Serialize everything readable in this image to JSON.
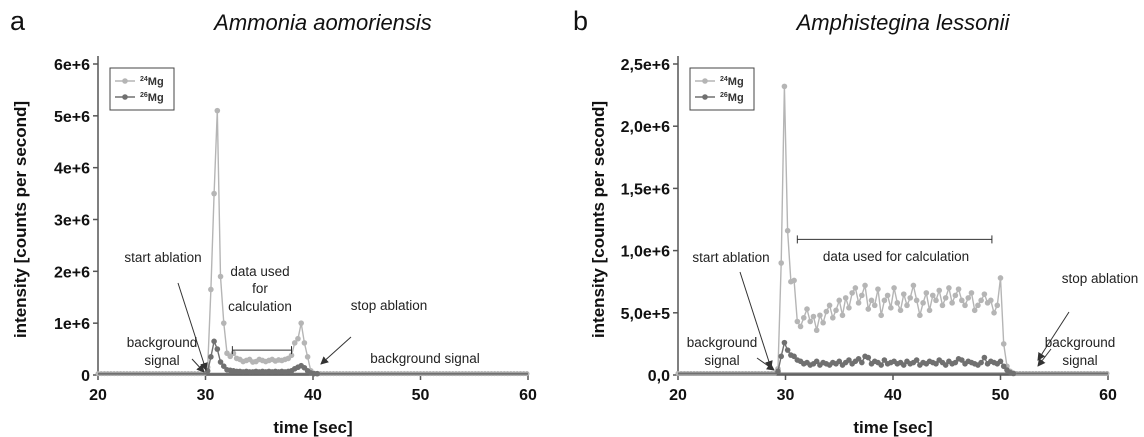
{
  "colors": {
    "mg24": "#b5b5b5",
    "mg26": "#707070"
  },
  "chart_data": [
    {
      "type": "line",
      "panel_letter": "a",
      "title": "Ammonia aomoriensis",
      "xlabel": "time [sec]",
      "ylabel": "intensity [counts per second]",
      "xlim": [
        20,
        60
      ],
      "ylim": [
        0,
        6000000
      ],
      "x_ticks": [
        20,
        30,
        40,
        50,
        60
      ],
      "x_tick_labels": [
        "20",
        "30",
        "40",
        "50",
        "60"
      ],
      "y_ticks": [
        0,
        1000000,
        2000000,
        3000000,
        4000000,
        5000000,
        6000000
      ],
      "y_tick_labels": [
        "0",
        "1e+6",
        "2e+6",
        "3e+6",
        "4e+6",
        "5e+6",
        "6e+6"
      ],
      "legend": {
        "placement": "top-left",
        "entries": [
          {
            "sup": "24",
            "label": "Mg"
          },
          {
            "sup": "26",
            "label": "Mg"
          }
        ]
      },
      "baseline": 25000,
      "series": [
        {
          "name": "24Mg",
          "color": "#b5b5b5",
          "x": [
            30.2,
            30.5,
            30.8,
            31.1,
            31.4,
            31.7,
            32.0,
            32.3,
            32.6,
            32.9,
            33.2,
            33.5,
            33.8,
            34.1,
            34.4,
            34.7,
            35.0,
            35.3,
            35.6,
            35.9,
            36.2,
            36.5,
            36.8,
            37.1,
            37.4,
            37.7,
            38.0,
            38.3,
            38.6,
            38.9,
            39.2,
            39.5,
            39.8,
            40.1,
            40.4
          ],
          "y": [
            150000,
            1650000,
            3500000,
            5100000,
            1900000,
            1000000,
            420000,
            360000,
            420000,
            320000,
            300000,
            260000,
            280000,
            300000,
            250000,
            260000,
            300000,
            280000,
            260000,
            280000,
            300000,
            270000,
            290000,
            280000,
            300000,
            320000,
            380000,
            620000,
            700000,
            1000000,
            620000,
            350000,
            80000,
            30000,
            25000
          ]
        },
        {
          "name": "26Mg",
          "color": "#707070",
          "x": [
            30.2,
            30.5,
            30.8,
            31.1,
            31.4,
            31.7,
            32.0,
            32.3,
            32.6,
            32.9,
            33.2,
            33.5,
            33.8,
            34.1,
            34.4,
            34.7,
            35.0,
            35.3,
            35.6,
            35.9,
            36.2,
            36.5,
            36.8,
            37.1,
            37.4,
            37.7,
            38.0,
            38.3,
            38.6,
            38.9,
            39.2,
            39.5,
            39.8,
            40.1,
            40.4
          ],
          "y": [
            80000,
            350000,
            650000,
            500000,
            250000,
            170000,
            100000,
            90000,
            80000,
            70000,
            70000,
            60000,
            70000,
            60000,
            60000,
            70000,
            60000,
            70000,
            60000,
            70000,
            60000,
            70000,
            60000,
            70000,
            60000,
            70000,
            80000,
            120000,
            150000,
            180000,
            140000,
            80000,
            40000,
            25000,
            25000
          ]
        }
      ],
      "annotations": [
        {
          "id": "start-ablation",
          "lines": [
            "start ablation"
          ]
        },
        {
          "id": "background-left",
          "lines": [
            "background",
            "signal"
          ]
        },
        {
          "id": "data-used",
          "lines": [
            "data used",
            "for",
            "calculation"
          ],
          "range": [
            32.5,
            38.0
          ],
          "y": 480000
        },
        {
          "id": "stop-ablation",
          "lines": [
            "stop ablation"
          ]
        },
        {
          "id": "background-right",
          "lines": [
            "background signal"
          ]
        }
      ]
    },
    {
      "type": "line",
      "panel_letter": "b",
      "title": "Amphistegina lessonii",
      "xlabel": "time [sec]",
      "ylabel": "intensity [counts per second]",
      "xlim": [
        20,
        60
      ],
      "ylim": [
        0,
        2500000
      ],
      "x_ticks": [
        20,
        30,
        40,
        50,
        60
      ],
      "x_tick_labels": [
        "20",
        "30",
        "40",
        "50",
        "60"
      ],
      "y_ticks": [
        0,
        500000,
        1000000,
        1500000,
        2000000,
        2500000
      ],
      "y_tick_labels": [
        "0,0",
        "5,0e+5",
        "1,0e+6",
        "1,5e+6",
        "2,0e+6",
        "2,5e+6"
      ],
      "legend": {
        "placement": "top-left",
        "entries": [
          {
            "sup": "24",
            "label": "Mg"
          },
          {
            "sup": "26",
            "label": "Mg"
          }
        ]
      },
      "baseline": 12000,
      "series": [
        {
          "name": "24Mg",
          "color": "#b5b5b5",
          "x": [
            29.3,
            29.6,
            29.9,
            30.2,
            30.5,
            30.8,
            31.1,
            31.4,
            31.7,
            32.0,
            32.3,
            32.6,
            32.9,
            33.2,
            33.5,
            33.8,
            34.1,
            34.4,
            34.7,
            35.0,
            35.3,
            35.6,
            35.9,
            36.2,
            36.5,
            36.8,
            37.1,
            37.4,
            37.7,
            38.0,
            38.3,
            38.6,
            38.9,
            39.2,
            39.5,
            39.8,
            40.1,
            40.4,
            40.7,
            41.0,
            41.3,
            41.6,
            41.9,
            42.2,
            42.5,
            42.8,
            43.1,
            43.4,
            43.7,
            44.0,
            44.3,
            44.6,
            44.9,
            45.2,
            45.5,
            45.8,
            46.1,
            46.4,
            46.7,
            47.0,
            47.3,
            47.6,
            47.9,
            48.2,
            48.5,
            48.8,
            49.1,
            49.4,
            49.7,
            50.0,
            50.3,
            50.6,
            50.9,
            51.2
          ],
          "y": [
            50000,
            900000,
            2320000,
            1160000,
            750000,
            760000,
            430000,
            390000,
            460000,
            530000,
            430000,
            470000,
            360000,
            480000,
            420000,
            510000,
            560000,
            460000,
            520000,
            600000,
            480000,
            620000,
            540000,
            660000,
            700000,
            580000,
            640000,
            720000,
            530000,
            600000,
            560000,
            690000,
            480000,
            600000,
            640000,
            540000,
            700000,
            580000,
            520000,
            650000,
            560000,
            620000,
            720000,
            600000,
            480000,
            580000,
            660000,
            520000,
            640000,
            600000,
            680000,
            560000,
            620000,
            700000,
            580000,
            640000,
            690000,
            600000,
            560000,
            620000,
            660000,
            520000,
            560000,
            600000,
            650000,
            580000,
            600000,
            500000,
            560000,
            780000,
            250000,
            70000,
            30000,
            15000
          ]
        },
        {
          "name": "26Mg",
          "color": "#707070",
          "x": [
            29.3,
            29.6,
            29.9,
            30.2,
            30.5,
            30.8,
            31.1,
            31.4,
            31.7,
            32.0,
            32.3,
            32.6,
            32.9,
            33.2,
            33.5,
            33.8,
            34.1,
            34.4,
            34.7,
            35.0,
            35.3,
            35.6,
            35.9,
            36.2,
            36.5,
            36.8,
            37.1,
            37.4,
            37.7,
            38.0,
            38.3,
            38.6,
            38.9,
            39.2,
            39.5,
            39.8,
            40.1,
            40.4,
            40.7,
            41.0,
            41.3,
            41.6,
            41.9,
            42.2,
            42.5,
            42.8,
            43.1,
            43.4,
            43.7,
            44.0,
            44.3,
            44.6,
            44.9,
            45.2,
            45.5,
            45.8,
            46.1,
            46.4,
            46.7,
            47.0,
            47.3,
            47.6,
            47.9,
            48.2,
            48.5,
            48.8,
            49.1,
            49.4,
            49.7,
            50.0,
            50.3,
            50.6,
            50.9,
            51.2
          ],
          "y": [
            30000,
            150000,
            260000,
            200000,
            160000,
            150000,
            120000,
            110000,
            90000,
            100000,
            80000,
            90000,
            110000,
            80000,
            100000,
            90000,
            80000,
            100000,
            90000,
            110000,
            80000,
            100000,
            120000,
            90000,
            110000,
            130000,
            100000,
            150000,
            140000,
            90000,
            110000,
            100000,
            80000,
            120000,
            90000,
            100000,
            110000,
            90000,
            100000,
            80000,
            110000,
            90000,
            100000,
            120000,
            80000,
            100000,
            90000,
            110000,
            100000,
            90000,
            120000,
            100000,
            80000,
            110000,
            90000,
            100000,
            130000,
            120000,
            90000,
            110000,
            100000,
            90000,
            80000,
            100000,
            140000,
            90000,
            110000,
            100000,
            90000,
            110000,
            70000,
            40000,
            20000,
            12000
          ]
        }
      ],
      "annotations": [
        {
          "id": "start-ablation",
          "lines": [
            "start ablation"
          ]
        },
        {
          "id": "data-used",
          "lines": [
            "data used for calculation"
          ],
          "range": [
            31.1,
            49.2
          ],
          "y": 1090000
        },
        {
          "id": "stop-ablation",
          "lines": [
            "stop ablation"
          ]
        },
        {
          "id": "background-left",
          "lines": [
            "background",
            "signal"
          ]
        },
        {
          "id": "background-right",
          "lines": [
            "background",
            "signal"
          ]
        }
      ]
    }
  ]
}
